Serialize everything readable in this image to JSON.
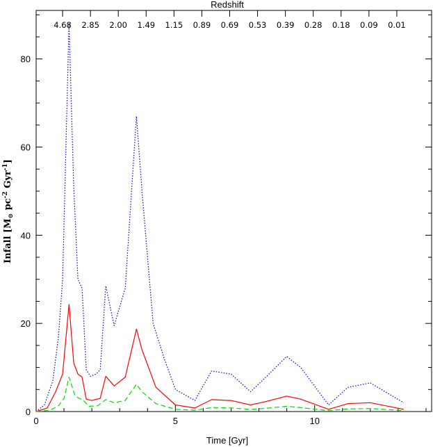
{
  "chart_data": {
    "type": "line",
    "title": "",
    "xlabel": "Time [Gyr]",
    "ylabel": {
      "prefix": "Infall [M",
      "sub": "⊙",
      "mid": " pc",
      "sup1": "-2",
      "mid2": " Gyr",
      "sup2": "-1",
      "suffix": "]"
    },
    "top_axis_label": "Redshift",
    "xlim": [
      0,
      14.2
    ],
    "ylim": [
      0,
      91
    ],
    "x_ticks": [
      0,
      5,
      10
    ],
    "x_tick_labels": [
      "0",
      "5",
      "10"
    ],
    "y_ticks": [
      0,
      20,
      40,
      60,
      80
    ],
    "y_tick_labels": [
      "0",
      "20",
      "40",
      "60",
      "80"
    ],
    "grid": false,
    "legend": "none",
    "redshift_labels": [
      {
        "z": "4.68",
        "t": 0.95
      },
      {
        "z": "2.85",
        "t": 1.95
      },
      {
        "z": "2.00",
        "t": 2.95
      },
      {
        "z": "1.49",
        "t": 3.95
      },
      {
        "z": "1.15",
        "t": 4.95
      },
      {
        "z": "0.89",
        "t": 5.95
      },
      {
        "z": "0.69",
        "t": 6.95
      },
      {
        "z": "0.53",
        "t": 7.95
      },
      {
        "z": "0.39",
        "t": 8.95
      },
      {
        "z": "0.28",
        "t": 9.95
      },
      {
        "z": "0.18",
        "t": 10.95
      },
      {
        "z": "0.09",
        "t": 11.95
      },
      {
        "z": "0.01",
        "t": 12.95
      }
    ],
    "series": [
      {
        "style": "dotted",
        "color": "#0000cc",
        "points": [
          [
            0,
            0
          ],
          [
            0.3,
            1.5
          ],
          [
            0.6,
            7
          ],
          [
            0.8,
            17
          ],
          [
            0.95,
            30
          ],
          [
            1.18,
            88
          ],
          [
            1.35,
            51
          ],
          [
            1.5,
            30
          ],
          [
            1.65,
            28
          ],
          [
            1.8,
            9.5
          ],
          [
            1.95,
            8
          ],
          [
            2.15,
            8.5
          ],
          [
            2.3,
            9.5
          ],
          [
            2.5,
            28.5
          ],
          [
            2.8,
            19.5
          ],
          [
            3.2,
            28
          ],
          [
            3.6,
            67
          ],
          [
            3.8,
            50
          ],
          [
            4.2,
            20
          ],
          [
            4.6,
            12
          ],
          [
            5.0,
            5
          ],
          [
            5.7,
            2.5
          ],
          [
            6.3,
            9.2
          ],
          [
            7.0,
            8.5
          ],
          [
            7.7,
            4.5
          ],
          [
            8.2,
            7.5
          ],
          [
            9.0,
            12.5
          ],
          [
            9.5,
            10
          ],
          [
            10.5,
            1.5
          ],
          [
            11.2,
            5.5
          ],
          [
            12.0,
            6.5
          ],
          [
            13.2,
            2
          ]
        ]
      },
      {
        "style": "solid",
        "color": "#ff0000",
        "points": [
          [
            0,
            0
          ],
          [
            0.4,
            0.8
          ],
          [
            0.7,
            4.5
          ],
          [
            0.95,
            8.5
          ],
          [
            1.18,
            24.3
          ],
          [
            1.35,
            11
          ],
          [
            1.5,
            8.5
          ],
          [
            1.65,
            7.8
          ],
          [
            1.8,
            2.8
          ],
          [
            2.0,
            2.5
          ],
          [
            2.3,
            3
          ],
          [
            2.5,
            8
          ],
          [
            2.8,
            5.8
          ],
          [
            3.2,
            7.8
          ],
          [
            3.6,
            18.7
          ],
          [
            3.8,
            14
          ],
          [
            4.3,
            5.5
          ],
          [
            5.0,
            1.5
          ],
          [
            5.7,
            0.8
          ],
          [
            6.3,
            2.7
          ],
          [
            7.0,
            2.5
          ],
          [
            7.7,
            1.5
          ],
          [
            8.2,
            2.2
          ],
          [
            9.0,
            3.5
          ],
          [
            9.5,
            2.8
          ],
          [
            10.5,
            0.5
          ],
          [
            11.2,
            1.8
          ],
          [
            12.0,
            2
          ],
          [
            13.2,
            0.5
          ]
        ]
      },
      {
        "style": "dashed",
        "color": "#00dd00",
        "points": [
          [
            0,
            0
          ],
          [
            0.5,
            0.3
          ],
          [
            0.8,
            1.3
          ],
          [
            1.0,
            3
          ],
          [
            1.18,
            7.8
          ],
          [
            1.4,
            3.5
          ],
          [
            1.7,
            2.5
          ],
          [
            1.9,
            1.2
          ],
          [
            2.2,
            1.3
          ],
          [
            2.5,
            2.7
          ],
          [
            2.8,
            2
          ],
          [
            3.2,
            2.5
          ],
          [
            3.6,
            6.2
          ],
          [
            3.8,
            4.5
          ],
          [
            4.3,
            1.8
          ],
          [
            5.0,
            0.5
          ],
          [
            5.7,
            0.3
          ],
          [
            6.3,
            0.9
          ],
          [
            7.0,
            0.8
          ],
          [
            7.7,
            0.5
          ],
          [
            8.2,
            0.7
          ],
          [
            9.0,
            1.2
          ],
          [
            9.5,
            0.9
          ],
          [
            10.5,
            0.2
          ],
          [
            11.2,
            0.6
          ],
          [
            12.0,
            0.7
          ],
          [
            13.2,
            0.2
          ]
        ]
      }
    ]
  }
}
